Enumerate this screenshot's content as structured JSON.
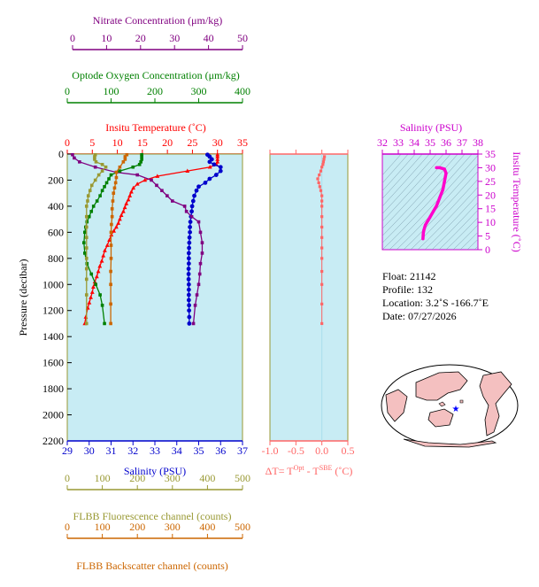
{
  "colors": {
    "nitrate": "#800080",
    "oxygen": "#008000",
    "temperature": "#ff0000",
    "salinity": "#0000cc",
    "fluorescence": "#999933",
    "backscatter": "#cc6600",
    "deltaT": "#ff6666",
    "ts_curve": "#ff00cc",
    "ts_axis": "#cc00cc",
    "plot_bg": "#c8ecf4",
    "land": "#f4c0c0"
  },
  "axes": {
    "nitrate_label": "Nitrate Concentration (μm/kg)",
    "oxygen_label": "Optode Oxygen Concentration (μm/kg)",
    "temperature_label": "Insitu Temperature (˚C)",
    "salinity_label": "Salinity (PSU)",
    "pressure_label": "Pressure (decibar)",
    "fluorescence_label": "FLBB Fluorescence channel (counts)",
    "backscatter_label": "FLBB Backscatter channel (counts)",
    "deltaT_label_prefix": "ΔT= T",
    "deltaT_sup1": "Opt",
    "deltaT_mid": " - T",
    "deltaT_sup2": "SBE",
    "deltaT_suffix": " (˚C)",
    "ts_top_label": "Salinity (PSU)",
    "ts_side_label": "Insitu Temperature (˚C)"
  },
  "info": {
    "float": "Float:  21142",
    "profile": "Profile:  132",
    "location": "Location:  3.2˚S  -166.7˚E",
    "date": "Date:  07/27/2026"
  },
  "chart_data": [
    {
      "type": "line",
      "title": "",
      "ylabel": "Pressure (decibar)",
      "ylim": [
        2200,
        0
      ],
      "pressure_ticks": [
        0,
        200,
        400,
        600,
        800,
        1000,
        1200,
        1400,
        1600,
        1800,
        2000,
        2200
      ],
      "series": [
        {
          "name": "Insitu Temperature (˚C)",
          "axis": "temperature",
          "range": [
            0,
            35
          ],
          "ticks": [
            0,
            5,
            10,
            15,
            20,
            25,
            30,
            35
          ],
          "x": [
            30.0,
            30.0,
            30.0,
            30.0,
            29.8,
            28.5,
            24.0,
            18.0,
            15.5,
            14.0,
            13.2,
            12.8,
            12.5,
            12.2,
            11.8,
            11.5,
            11.2,
            10.8,
            10.5,
            10.2,
            9.8,
            9.3,
            8.8,
            8.4,
            8.0,
            7.5,
            7.2,
            6.9,
            6.5,
            6.2,
            5.9,
            5.5,
            5.2,
            5.0,
            4.7,
            4.4,
            4.1,
            3.7,
            3.5
          ],
          "y": [
            5,
            20,
            40,
            60,
            80,
            100,
            130,
            170,
            200,
            230,
            260,
            290,
            320,
            350,
            380,
            410,
            440,
            470,
            500,
            530,
            560,
            590,
            620,
            660,
            700,
            740,
            780,
            820,
            860,
            900,
            940,
            980,
            1020,
            1060,
            1100,
            1140,
            1180,
            1250,
            1300
          ]
        },
        {
          "name": "Salinity (PSU)",
          "axis": "salinity",
          "range": [
            29,
            37
          ],
          "ticks": [
            29,
            30,
            31,
            32,
            33,
            34,
            35,
            36,
            37
          ],
          "x": [
            35.4,
            35.5,
            35.6,
            35.5,
            35.7,
            36.0,
            36.0,
            35.8,
            35.5,
            35.3,
            35.0,
            34.9,
            34.8,
            34.75,
            34.7,
            34.68,
            34.65,
            34.62,
            34.6,
            34.6,
            34.58,
            34.57,
            34.56,
            34.55,
            34.55,
            34.55,
            34.54,
            34.54,
            34.54,
            34.55,
            34.55,
            34.55,
            34.55,
            34.56,
            34.56,
            34.57,
            34.57
          ],
          "y": [
            5,
            20,
            40,
            60,
            80,
            100,
            130,
            160,
            190,
            220,
            250,
            280,
            320,
            360,
            400,
            440,
            480,
            520,
            560,
            600,
            640,
            680,
            720,
            760,
            800,
            840,
            880,
            920,
            960,
            1000,
            1040,
            1080,
            1120,
            1160,
            1200,
            1250,
            1300
          ]
        },
        {
          "name": "Nitrate Concentration (μm/kg)",
          "axis": "nitrate",
          "range": [
            0,
            50
          ],
          "ticks": [
            0,
            10,
            20,
            30,
            40,
            50
          ],
          "x": [
            1.5,
            2.0,
            3.5,
            8.0,
            14.0,
            20.0,
            24.0,
            25.5,
            27.0,
            28.5,
            30.0,
            33.5,
            34.0,
            35.5,
            37.5,
            38.0,
            38.5,
            38.5,
            38.0,
            37.8,
            37.5,
            37.0,
            36.5,
            36.0
          ],
          "y": [
            5,
            30,
            60,
            100,
            140,
            160,
            200,
            240,
            280,
            320,
            360,
            400,
            440,
            480,
            520,
            600,
            680,
            760,
            840,
            920,
            1000,
            1080,
            1160,
            1300
          ]
        },
        {
          "name": "Optode Oxygen Concentration (μm/kg)",
          "axis": "oxygen",
          "range": [
            0,
            400
          ],
          "ticks": [
            0,
            100,
            200,
            300,
            400
          ],
          "x": [
            170,
            170,
            170,
            168,
            165,
            150,
            120,
            100,
            95,
            90,
            85,
            80,
            75,
            68,
            60,
            55,
            50,
            45,
            42,
            40,
            38,
            40,
            45,
            55,
            65,
            75,
            80,
            85
          ],
          "y": [
            5,
            20,
            40,
            60,
            80,
            100,
            130,
            160,
            190,
            220,
            250,
            280,
            320,
            360,
            400,
            440,
            480,
            520,
            560,
            600,
            680,
            760,
            840,
            920,
            1000,
            1080,
            1160,
            1300
          ]
        },
        {
          "name": "FLBB Fluorescence channel (counts)",
          "axis": "fluorescence",
          "range": [
            0,
            500
          ],
          "ticks": [
            0,
            100,
            200,
            300,
            400,
            500
          ],
          "x": [
            80,
            78,
            78,
            82,
            100,
            110,
            100,
            90,
            80,
            70,
            65,
            60,
            58,
            55,
            55,
            55,
            55,
            55,
            55,
            55,
            55,
            55,
            55
          ],
          "y": [
            5,
            20,
            40,
            60,
            80,
            100,
            130,
            160,
            200,
            240,
            280,
            320,
            360,
            400,
            480,
            560,
            640,
            720,
            800,
            880,
            960,
            1080,
            1300
          ]
        },
        {
          "name": "FLBB Backscatter channel (counts)",
          "axis": "backscatter",
          "range": [
            0,
            500
          ],
          "ticks": [
            0,
            100,
            200,
            300,
            400,
            500
          ],
          "x": [
            170,
            165,
            165,
            160,
            150,
            140,
            140,
            138,
            135,
            132,
            130,
            128,
            128,
            126,
            125,
            125,
            125,
            124,
            124,
            124,
            124
          ],
          "y": [
            5,
            20,
            40,
            60,
            100,
            140,
            180,
            220,
            260,
            300,
            360,
            420,
            480,
            540,
            600,
            700,
            800,
            900,
            1000,
            1150,
            1300
          ]
        }
      ]
    },
    {
      "type": "scatter",
      "xlabel": "ΔT= T Opt - T SBE (˚C)",
      "xlim": [
        -1.0,
        0.5
      ],
      "xticks": [
        -1.0,
        -0.5,
        0.0,
        0.5
      ],
      "ylim": [
        2200,
        0
      ],
      "x": [
        0.05,
        0.04,
        0.03,
        0.02,
        0.0,
        -0.02,
        -0.05,
        -0.08,
        -0.06,
        -0.04,
        -0.02,
        0.0,
        0.0,
        0.0,
        0.0,
        0.0,
        0.0,
        0.0,
        0.0,
        0.0,
        0.0,
        0.0,
        0.0
      ],
      "y": [
        20,
        40,
        60,
        80,
        100,
        130,
        160,
        190,
        220,
        250,
        280,
        320,
        360,
        400,
        480,
        560,
        640,
        720,
        800,
        900,
        1000,
        1150,
        1300
      ]
    },
    {
      "type": "line",
      "title": "",
      "xlabel": "Salinity (PSU)",
      "ylabel": "Insitu Temperature (˚C)",
      "xlim": [
        32,
        38
      ],
      "xticks": [
        32,
        33,
        34,
        35,
        36,
        37,
        38
      ],
      "ylim": [
        0,
        35
      ],
      "yticks": [
        0,
        5,
        10,
        15,
        20,
        25,
        30,
        35
      ],
      "x": [
        34.55,
        34.56,
        34.57,
        34.6,
        34.65,
        34.7,
        34.8,
        34.9,
        35.0,
        35.2,
        35.4,
        35.6,
        35.8,
        35.9,
        36.0,
        35.9,
        35.6,
        35.4
      ],
      "y": [
        4,
        5,
        6,
        7,
        8,
        9,
        10,
        11,
        12,
        14,
        16,
        19,
        22,
        25,
        28,
        29.5,
        30,
        30
      ]
    }
  ]
}
